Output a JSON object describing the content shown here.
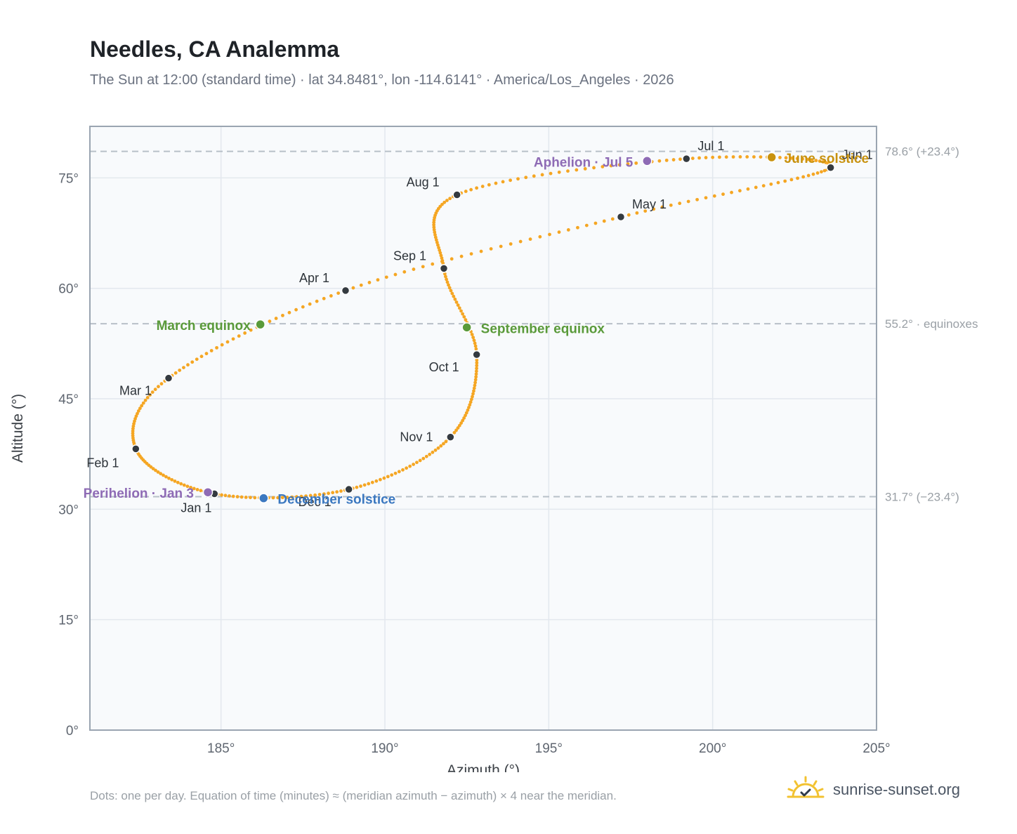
{
  "header": {
    "title": "Needles, CA Analemma",
    "subtitle": "The Sun at 12:00 (standard time) · lat 34.8481°, lon -114.6141° · America/Los_Angeles · 2026"
  },
  "footer": {
    "note": "Dots: one per day. Equation of time (minutes) ≈ (meridian azimuth − azimuth) × 4 near the meridian.",
    "brand": "sunrise-sunset.org"
  },
  "colors": {
    "curve": "#f5a623",
    "month_marker": "#343a40",
    "equinox": "#5a9a3a",
    "june_solstice": "#c8920f",
    "december_solstice": "#3b78c0",
    "perihelion_aphelion": "#8e6bb5",
    "reference_line": "#b8c0c8",
    "plot_bg": "#f8fafc",
    "grid": "#e3e8ee"
  },
  "chart_data": {
    "type": "scatter",
    "xlabel": "Azimuth (°)",
    "ylabel": "Altitude (°)",
    "xlim": [
      181,
      205
    ],
    "ylim": [
      0,
      82
    ],
    "x_ticks": [
      185,
      190,
      195,
      200,
      205
    ],
    "x_tick_labels": [
      "185°",
      "190°",
      "195°",
      "200°",
      "205°"
    ],
    "y_ticks": [
      0,
      15,
      30,
      45,
      60,
      75
    ],
    "y_tick_labels": [
      "0°",
      "15°",
      "30°",
      "45°",
      "60°",
      "75°"
    ],
    "grid": true,
    "reference_lines": [
      {
        "y": 78.6,
        "label": "78.6° (+23.4°)"
      },
      {
        "y": 55.2,
        "label": "55.2° · equinoxes"
      },
      {
        "y": 31.7,
        "label": "31.7° (−23.4°)"
      }
    ],
    "month_markers": [
      {
        "label": "Jan 1",
        "az": 184.8,
        "alt": 32.1
      },
      {
        "label": "Feb 1",
        "az": 182.4,
        "alt": 38.2
      },
      {
        "label": "Mar 1",
        "az": 183.4,
        "alt": 47.8
      },
      {
        "label": "Apr 1",
        "az": 188.8,
        "alt": 59.7
      },
      {
        "label": "May 1",
        "az": 197.2,
        "alt": 69.7
      },
      {
        "label": "Jun 1",
        "az": 203.6,
        "alt": 76.4
      },
      {
        "label": "Jul 1",
        "az": 199.2,
        "alt": 77.6
      },
      {
        "label": "Aug 1",
        "az": 192.2,
        "alt": 72.7
      },
      {
        "label": "Sep 1",
        "az": 191.8,
        "alt": 62.7
      },
      {
        "label": "Oct 1",
        "az": 192.8,
        "alt": 51.0
      },
      {
        "label": "Nov 1",
        "az": 192.0,
        "alt": 39.8
      },
      {
        "label": "Dec 1",
        "az": 188.9,
        "alt": 32.7
      }
    ],
    "events": [
      {
        "label": "March equinox",
        "az": 186.2,
        "alt": 55.1,
        "color_key": "equinox"
      },
      {
        "label": "June solstice",
        "az": 201.8,
        "alt": 77.8,
        "color_key": "june_solstice"
      },
      {
        "label": "September equinox",
        "az": 192.5,
        "alt": 54.7,
        "color_key": "equinox"
      },
      {
        "label": "December solstice",
        "az": 186.3,
        "alt": 31.5,
        "color_key": "december_solstice"
      },
      {
        "label": "Perihelion · Jan 3",
        "az": 184.6,
        "alt": 32.3,
        "color_key": "perihelion_aphelion"
      },
      {
        "label": "Aphelion · Jul 5",
        "az": 198.0,
        "alt": 77.3,
        "color_key": "perihelion_aphelion"
      }
    ]
  }
}
